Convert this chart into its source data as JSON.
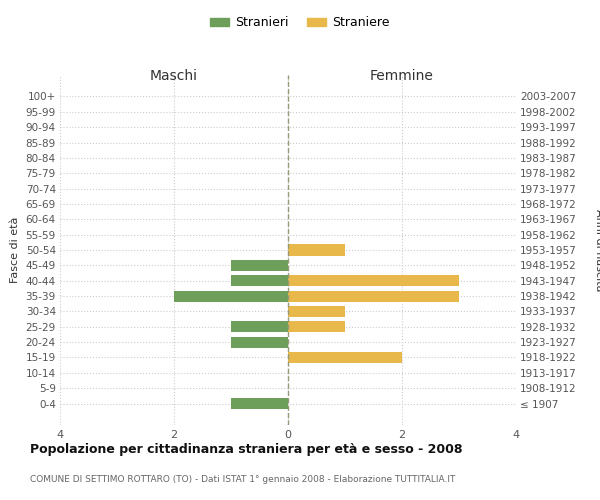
{
  "age_groups": [
    "100+",
    "95-99",
    "90-94",
    "85-89",
    "80-84",
    "75-79",
    "70-74",
    "65-69",
    "60-64",
    "55-59",
    "50-54",
    "45-49",
    "40-44",
    "35-39",
    "30-34",
    "25-29",
    "20-24",
    "15-19",
    "10-14",
    "5-9",
    "0-4"
  ],
  "birth_years": [
    "≤ 1907",
    "1908-1912",
    "1913-1917",
    "1918-1922",
    "1923-1927",
    "1928-1932",
    "1933-1937",
    "1938-1942",
    "1943-1947",
    "1948-1952",
    "1953-1957",
    "1958-1962",
    "1963-1967",
    "1968-1972",
    "1973-1977",
    "1978-1982",
    "1983-1987",
    "1988-1992",
    "1993-1997",
    "1998-2002",
    "2003-2007"
  ],
  "males": [
    0,
    0,
    0,
    0,
    0,
    0,
    0,
    0,
    0,
    0,
    0,
    1,
    1,
    2,
    0,
    1,
    1,
    0,
    0,
    0,
    1
  ],
  "females": [
    0,
    0,
    0,
    0,
    0,
    0,
    0,
    0,
    0,
    0,
    1,
    0,
    3,
    3,
    1,
    1,
    0,
    2,
    0,
    0,
    0
  ],
  "male_color": "#6d9e5a",
  "female_color": "#e8b84b",
  "background_color": "#ffffff",
  "grid_color": "#cccccc",
  "title": "Popolazione per cittadinanza straniera per età e sesso - 2008",
  "subtitle": "COMUNE DI SETTIMO ROTTARO (TO) - Dati ISTAT 1° gennaio 2008 - Elaborazione TUTTITALIA.IT",
  "xlabel_left": "Maschi",
  "xlabel_right": "Femmine",
  "ylabel_left": "Fasce di età",
  "ylabel_right": "Anni di nascita",
  "legend_male": "Stranieri",
  "legend_female": "Straniere",
  "xlim": 4
}
